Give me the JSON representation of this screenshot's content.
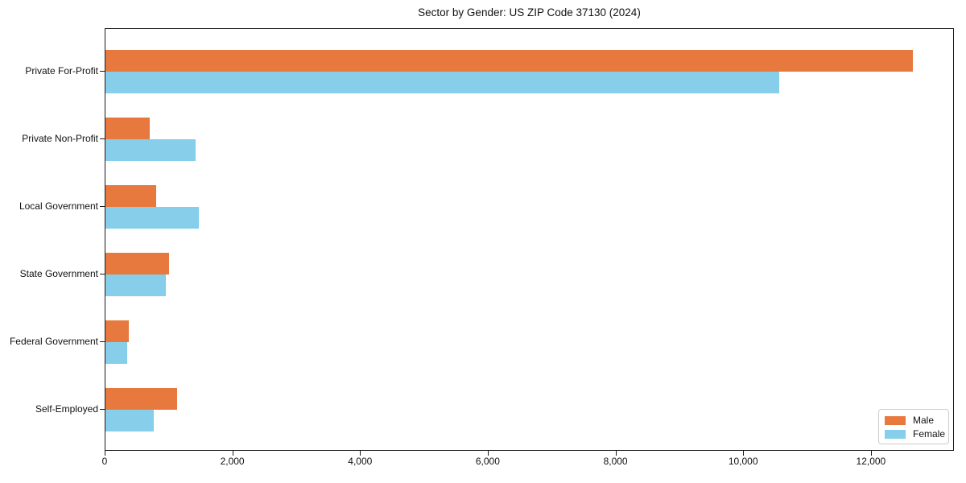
{
  "chart_data": {
    "type": "bar",
    "orientation": "horizontal",
    "title": "Sector by Gender: US ZIP Code 37130 (2024)",
    "categories": [
      "Private For-Profit",
      "Private Non-Profit",
      "Local Government",
      "State Government",
      "Federal Government",
      "Self-Employed"
    ],
    "series": [
      {
        "name": "Male",
        "color": "#e8793e",
        "values": [
          12650,
          690,
          790,
          1000,
          370,
          1120
        ]
      },
      {
        "name": "Female",
        "color": "#87ceeb",
        "values": [
          10550,
          1410,
          1460,
          950,
          340,
          755
        ]
      }
    ],
    "xlabel": "",
    "ylabel": "",
    "xlim": [
      0,
      13300
    ],
    "x_ticks": [
      {
        "value": 0,
        "label": "0"
      },
      {
        "value": 2000,
        "label": "2,000"
      },
      {
        "value": 4000,
        "label": "4,000"
      },
      {
        "value": 6000,
        "label": "6,000"
      },
      {
        "value": 8000,
        "label": "8,000"
      },
      {
        "value": 10000,
        "label": "10,000"
      },
      {
        "value": 12000,
        "label": "12,000"
      }
    ],
    "grid": false,
    "legend": {
      "position": "lower right",
      "entries": [
        "Male",
        "Female"
      ]
    }
  },
  "colors": {
    "male": "#e8793e",
    "female": "#87ceeb",
    "frame": "#1a1a1a",
    "legend_border": "#cccccc",
    "background": "#ffffff"
  }
}
